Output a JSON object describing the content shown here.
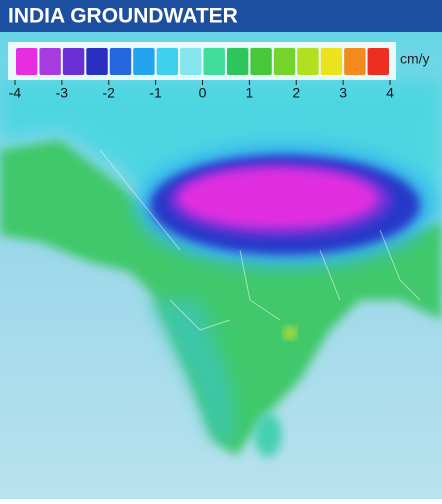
{
  "title": "INDIA GROUNDWATER",
  "legend": {
    "unit": "cm/y",
    "ticks": [
      -4,
      -3,
      -2,
      -1,
      0,
      1,
      2,
      3,
      4
    ],
    "colors": [
      "#e62ee0",
      "#a63be0",
      "#6a2fd6",
      "#2a2fc2",
      "#2466e0",
      "#24a4ee",
      "#3fd0ee",
      "#86e6ee",
      "#3fdc9a",
      "#2ec45e",
      "#46c83a",
      "#74d42c",
      "#b0e020",
      "#ece21e",
      "#f28a1e",
      "#ee2e20"
    ],
    "range": [
      -4,
      4
    ]
  }
}
